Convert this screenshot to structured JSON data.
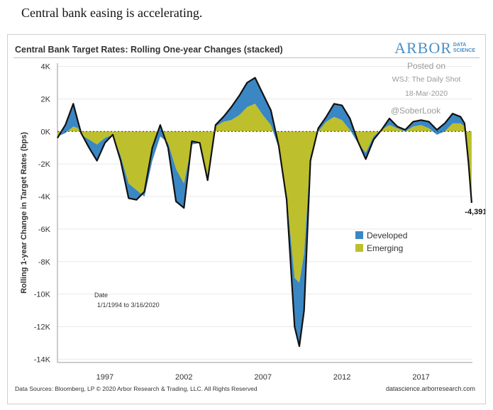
{
  "headline": "Central bank easing is accelerating.",
  "figure": {
    "title": "Central Bank Target Rates: Rolling One-year Changes (stacked)",
    "logo_main": "ARBOR",
    "logo_sub_1": "DATA",
    "logo_sub_2": "SCIENCE",
    "watermark": [
      "Posted on",
      "WSJ: The Daily Shot",
      "18-Mar-2020",
      "@SoberLook"
    ],
    "date_note": "Date",
    "date_range": "1/1/1994 to 3/16/2020",
    "last_value_label": "-4,391",
    "footer_left": "Data Sources: Bloomberg, LP © 2020 Arbor Research & Trading, LLC. All Rights Reserved",
    "footer_right": "datascience.arborresearch.com"
  },
  "colors": {
    "developed": "#3a87c4",
    "emerging": "#bdbf2c",
    "total_line": "#111111",
    "zero_line": "#444444",
    "grid": "#e9e9e9"
  },
  "chart_data": {
    "type": "area",
    "stacked": true,
    "ylabel": "Rolling 1-year Change in Target Rates (bps)",
    "xlabel": "",
    "xlim": [
      1994.0,
      2020.25
    ],
    "ylim": [
      -14200,
      4200
    ],
    "yticks": [
      4000,
      2000,
      0,
      -2000,
      -4000,
      -6000,
      -8000,
      -10000,
      -12000,
      -14000
    ],
    "ytick_labels": [
      "4K",
      "2K",
      "0K",
      "-2K",
      "-4K",
      "-6K",
      "-8K",
      "-10K",
      "-12K",
      "-14K"
    ],
    "xticks": [
      1997,
      2002,
      2007,
      2012,
      2017
    ],
    "xtick_labels": [
      "1997",
      "2002",
      "2007",
      "2012",
      "2017"
    ],
    "legend_position": "right",
    "series": [
      {
        "name": "Developed",
        "x": [
          1994.0,
          1994.5,
          1995.0,
          1995.3,
          1995.5,
          1996.0,
          1996.5,
          1997.0,
          1997.5,
          1998.0,
          1998.5,
          1999.0,
          1999.5,
          2000.0,
          2000.5,
          2001.0,
          2001.5,
          2002.0,
          2002.5,
          2003.0,
          2003.5,
          2004.0,
          2004.5,
          2005.0,
          2005.5,
          2006.0,
          2006.5,
          2007.0,
          2007.5,
          2008.0,
          2008.5,
          2009.0,
          2009.3,
          2009.6,
          2010.0,
          2010.5,
          2011.0,
          2011.5,
          2012.0,
          2012.5,
          2013.0,
          2013.5,
          2014.0,
          2014.5,
          2015.0,
          2015.5,
          2016.0,
          2016.5,
          2017.0,
          2017.5,
          2018.0,
          2018.5,
          2019.0,
          2019.5,
          2019.75,
          2020.0,
          2020.2
        ],
        "values": [
          -100,
          500,
          1400,
          400,
          100,
          -500,
          -1000,
          -300,
          0,
          -300,
          -900,
          -600,
          300,
          800,
          700,
          -300,
          -2000,
          -1500,
          200,
          0,
          -200,
          100,
          300,
          800,
          1200,
          1500,
          1600,
          1300,
          900,
          100,
          -200,
          -3000,
          -3900,
          -3500,
          -300,
          200,
          300,
          800,
          900,
          700,
          100,
          -400,
          -200,
          0,
          400,
          100,
          100,
          300,
          300,
          400,
          300,
          500,
          600,
          400,
          200,
          -300,
          -500
        ]
      },
      {
        "name": "Emerging",
        "x": [
          1994.0,
          1994.5,
          1995.0,
          1995.3,
          1995.5,
          1996.0,
          1996.5,
          1997.0,
          1997.5,
          1998.0,
          1998.5,
          1999.0,
          1999.5,
          2000.0,
          2000.5,
          2001.0,
          2001.5,
          2002.0,
          2002.5,
          2003.0,
          2003.5,
          2004.0,
          2004.5,
          2005.0,
          2005.5,
          2006.0,
          2006.5,
          2007.0,
          2007.5,
          2008.0,
          2008.5,
          2009.0,
          2009.3,
          2009.6,
          2010.0,
          2010.5,
          2011.0,
          2011.5,
          2012.0,
          2012.5,
          2013.0,
          2013.5,
          2014.0,
          2014.5,
          2015.0,
          2015.5,
          2016.0,
          2016.5,
          2017.0,
          2017.5,
          2018.0,
          2018.5,
          2019.0,
          2019.5,
          2019.75,
          2020.0,
          2020.2
        ],
        "values": [
          -300,
          -100,
          300,
          200,
          -200,
          -500,
          -800,
          -400,
          -200,
          -1500,
          -3200,
          -3600,
          -4000,
          -1800,
          -300,
          -700,
          -2300,
          -3200,
          -800,
          -700,
          -2800,
          300,
          600,
          700,
          1000,
          1500,
          1700,
          1000,
          400,
          -1000,
          -4000,
          -9000,
          -9300,
          -7500,
          -1500,
          0,
          600,
          900,
          700,
          100,
          -700,
          -1300,
          -300,
          100,
          400,
          200,
          0,
          300,
          400,
          200,
          -200,
          0,
          500,
          500,
          300,
          -1600,
          -3900
        ]
      }
    ],
    "total": {
      "x": [
        1994.0,
        1994.5,
        1995.0,
        1995.3,
        1995.5,
        1996.0,
        1996.5,
        1997.0,
        1997.5,
        1998.0,
        1998.5,
        1999.0,
        1999.5,
        2000.0,
        2000.5,
        2001.0,
        2001.5,
        2002.0,
        2002.5,
        2003.0,
        2003.5,
        2004.0,
        2004.5,
        2005.0,
        2005.5,
        2006.0,
        2006.5,
        2007.0,
        2007.5,
        2008.0,
        2008.5,
        2009.0,
        2009.3,
        2009.6,
        2010.0,
        2010.5,
        2011.0,
        2011.5,
        2012.0,
        2012.5,
        2013.0,
        2013.5,
        2014.0,
        2014.5,
        2015.0,
        2015.5,
        2016.0,
        2016.5,
        2017.0,
        2017.5,
        2018.0,
        2018.5,
        2019.0,
        2019.5,
        2019.75,
        2020.0,
        2020.2
      ],
      "values": [
        -400,
        400,
        1700,
        600,
        -100,
        -1000,
        -1800,
        -700,
        -200,
        -1800,
        -4100,
        -4200,
        -3700,
        -1000,
        400,
        -1000,
        -4300,
        -4700,
        -600,
        -700,
        -3000,
        400,
        900,
        1500,
        2200,
        3000,
        3300,
        2300,
        1300,
        -900,
        -4200,
        -12000,
        -13200,
        -11000,
        -1800,
        200,
        900,
        1700,
        1600,
        800,
        -600,
        -1700,
        -500,
        100,
        800,
        300,
        100,
        600,
        700,
        600,
        100,
        500,
        1100,
        900,
        500,
        -1900,
        -4391
      ]
    }
  }
}
